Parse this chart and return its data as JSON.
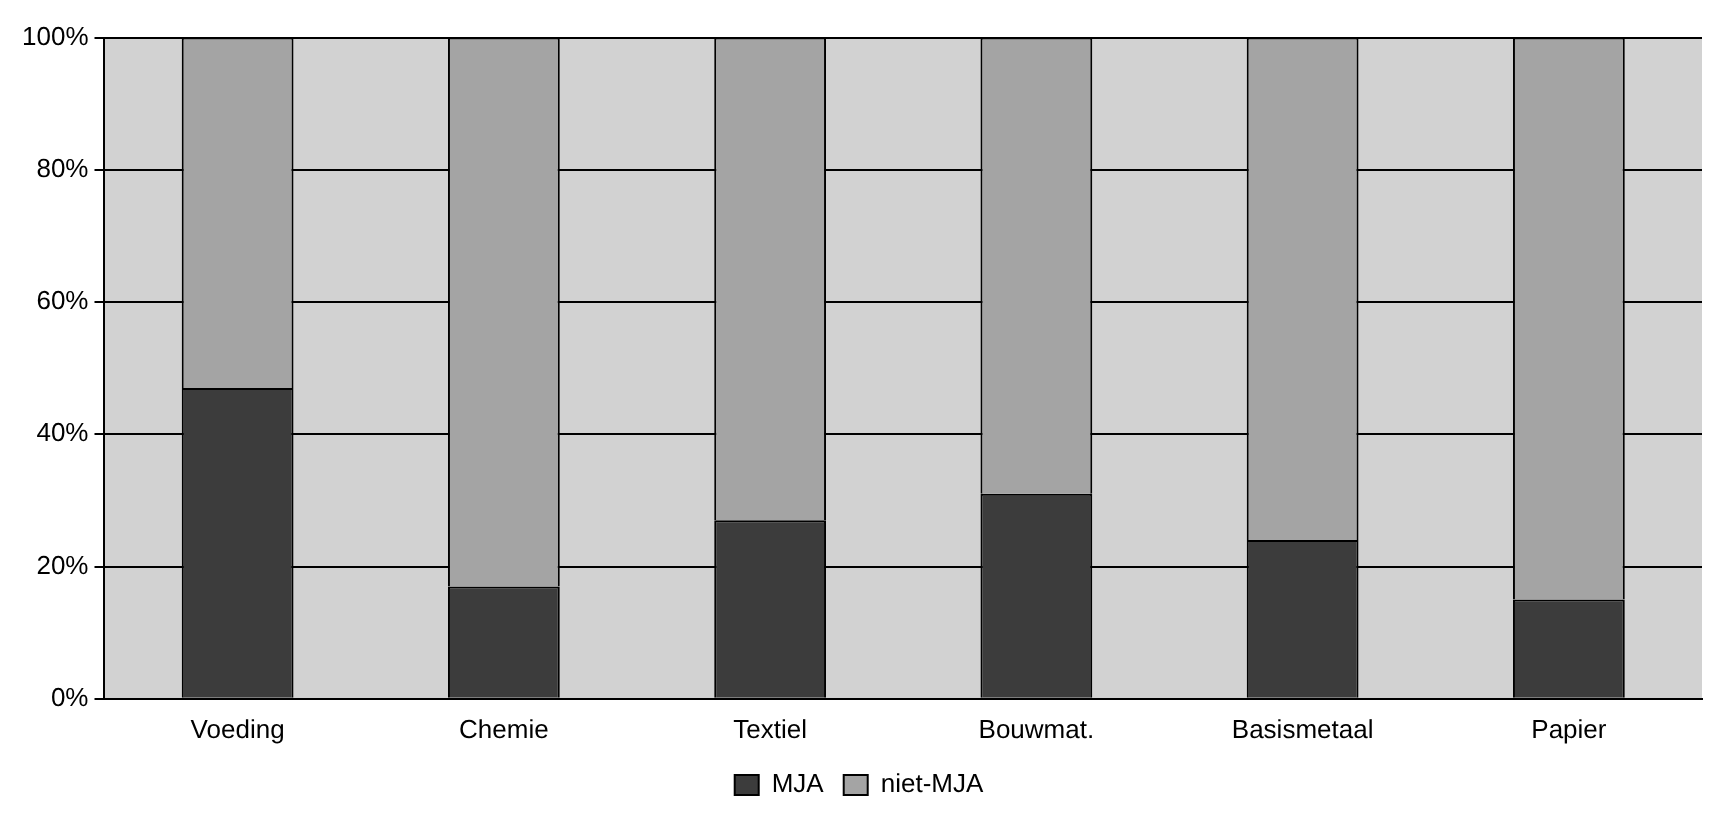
{
  "chart_data": {
    "type": "bar",
    "stacked": true,
    "categories": [
      "Voeding",
      "Chemie",
      "Textiel",
      "Bouwmat.",
      "Basismetaal",
      "Papier"
    ],
    "series": [
      {
        "name": "MJA",
        "color": "#3c3c3c",
        "values": [
          47,
          17,
          27,
          31,
          24,
          15
        ]
      },
      {
        "name": "niet-MJA",
        "color": "#a4a4a4",
        "values": [
          53,
          83,
          73,
          69,
          76,
          85
        ]
      }
    ],
    "ylim": [
      0,
      100
    ],
    "yticks": [
      {
        "value": 0,
        "label": "0%"
      },
      {
        "value": 20,
        "label": "20%"
      },
      {
        "value": 40,
        "label": "40%"
      },
      {
        "value": 60,
        "label": "60%"
      },
      {
        "value": 80,
        "label": "80%"
      },
      {
        "value": 100,
        "label": "100%"
      }
    ],
    "grid": "y",
    "legend": "bottom"
  }
}
